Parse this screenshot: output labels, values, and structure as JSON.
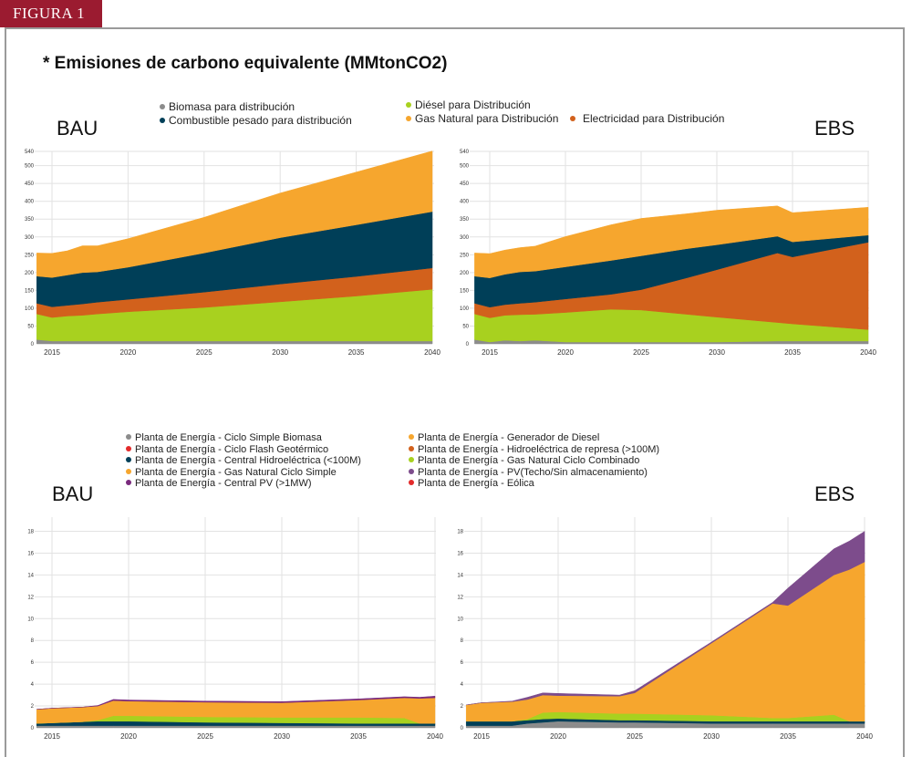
{
  "figure_tag": "FIGURA 1",
  "title": "* Emisiones de carbono equivalente (MMtonCO2)",
  "top_section": {
    "label_left": "BAU",
    "label_right": "EBS",
    "legend": [
      {
        "name": "Biomasa para distribución",
        "color": "#8c8c8c"
      },
      {
        "name": "Combustible pesado para distribución",
        "color": "#003f58"
      },
      {
        "name": "Diésel para Distribución",
        "color": "#a8d11f"
      },
      {
        "name": "Gas Natural para Distribución",
        "color": "#f6a62e"
      },
      {
        "name": "Electricidad para Distribución",
        "color": "#d2611c"
      }
    ]
  },
  "bottom_section": {
    "label_left": "BAU",
    "label_right": "EBS",
    "legend": [
      {
        "name": "Planta de Energía - Ciclo Simple Biomasa",
        "color": "#8c8c8c"
      },
      {
        "name": "Planta de Energía - Ciclo Flash Geotérmico",
        "color": "#e32b2b"
      },
      {
        "name": "Planta de Energía - Central Hidroeléctrica (<100M)",
        "color": "#003f58"
      },
      {
        "name": "Planta de Energía - Gas Natural Ciclo Simple",
        "color": "#f6a62e"
      },
      {
        "name": "Planta de Energía - Central PV (>1MW)",
        "color": "#7a2a7d"
      },
      {
        "name": "Planta de Energía - Generador de Diesel",
        "color": "#f6a62e"
      },
      {
        "name": "Planta de Energía - Hidroeléctrica de represa (>100M)",
        "color": "#d2611c"
      },
      {
        "name": "Planta de Energía - Gas Natural Ciclo Combinado",
        "color": "#a8d11f"
      },
      {
        "name": "Planta de Energía - PV(Techo/Sin almacenamiento)",
        "color": "#7d4c8c"
      },
      {
        "name": "Planta de Energía - Eólica",
        "color": "#e32b2b"
      }
    ]
  },
  "chart_data": [
    {
      "id": "top-bau",
      "type": "area",
      "stacked": true,
      "title": "BAU",
      "x": [
        2014,
        2015,
        2016,
        2017,
        2018,
        2020,
        2025,
        2030,
        2035,
        2040
      ],
      "xticks": [
        2015,
        2020,
        2025,
        2030,
        2035,
        2040
      ],
      "yticks": [
        0,
        50,
        100,
        150,
        200,
        250,
        300,
        350,
        400,
        450,
        500,
        540
      ],
      "ylim": [
        0,
        540
      ],
      "grid": true,
      "series": [
        {
          "name": "Biomasa para distribución",
          "color": "#8c8c8c",
          "values": [
            12,
            8,
            8,
            8,
            8,
            8,
            8,
            8,
            8,
            8
          ]
        },
        {
          "name": "Diésel para Distribución",
          "color": "#a8d11f",
          "values": [
            72,
            66,
            70,
            72,
            76,
            82,
            94,
            110,
            126,
            145
          ]
        },
        {
          "name": "Electricidad para Distribución",
          "color": "#d2611c",
          "values": [
            30,
            30,
            30,
            32,
            33,
            35,
            43,
            50,
            55,
            60
          ]
        },
        {
          "name": "Combustible pesado para distribución",
          "color": "#003f58",
          "values": [
            76,
            82,
            85,
            88,
            85,
            90,
            110,
            130,
            145,
            158
          ]
        },
        {
          "name": "Gas Natural para Distribución",
          "color": "#f6a62e",
          "values": [
            65,
            68,
            68,
            75,
            73,
            80,
            100,
            125,
            148,
            170
          ]
        }
      ]
    },
    {
      "id": "top-ebs",
      "type": "area",
      "stacked": true,
      "title": "EBS",
      "x": [
        2014,
        2015,
        2016,
        2017,
        2018,
        2020,
        2023,
        2025,
        2028,
        2030,
        2034,
        2035,
        2040
      ],
      "xticks": [
        2015,
        2020,
        2025,
        2030,
        2035,
        2040
      ],
      "yticks": [
        0,
        50,
        100,
        150,
        200,
        250,
        300,
        350,
        400,
        450,
        500,
        540
      ],
      "ylim": [
        0,
        540
      ],
      "grid": true,
      "series": [
        {
          "name": "Biomasa para distribución",
          "color": "#8c8c8c",
          "values": [
            12,
            5,
            10,
            8,
            10,
            5,
            5,
            5,
            5,
            5,
            8,
            8,
            8
          ]
        },
        {
          "name": "Diésel para Distribución",
          "color": "#a8d11f",
          "values": [
            72,
            68,
            70,
            74,
            73,
            83,
            92,
            90,
            78,
            70,
            52,
            48,
            32
          ]
        },
        {
          "name": "Electricidad para Distribución",
          "color": "#d2611c",
          "values": [
            30,
            30,
            30,
            32,
            34,
            38,
            42,
            57,
            102,
            133,
            195,
            188,
            245
          ]
        },
        {
          "name": "Combustible pesado para distribución",
          "color": "#003f58",
          "values": [
            76,
            82,
            85,
            88,
            87,
            90,
            95,
            95,
            82,
            70,
            47,
            42,
            20
          ]
        },
        {
          "name": "Gas Natural para Distribución",
          "color": "#f6a62e",
          "values": [
            65,
            68,
            68,
            68,
            70,
            85,
            100,
            105,
            98,
            97,
            85,
            82,
            78
          ]
        }
      ]
    },
    {
      "id": "bottom-bau",
      "type": "area",
      "stacked": true,
      "title": "BAU",
      "x": [
        2014,
        2015,
        2017,
        2018,
        2019,
        2020,
        2025,
        2030,
        2035,
        2038,
        2039,
        2040
      ],
      "xticks": [
        2015,
        2020,
        2025,
        2030,
        2035,
        2040
      ],
      "yticks": [
        0,
        2,
        4,
        6,
        8,
        10,
        12,
        14,
        16,
        18
      ],
      "ylim": [
        0,
        19.3
      ],
      "grid": true,
      "series": [
        {
          "name": "Planta de Energía - Ciclo Simple Biomasa",
          "color": "#8c8c8c",
          "values": [
            0.2,
            0.2,
            0.2,
            0.2,
            0.2,
            0.2,
            0.2,
            0.2,
            0.2,
            0.2,
            0.2,
            0.2
          ]
        },
        {
          "name": "Planta de Energía - Central Hidroeléctrica (<100M)",
          "color": "#003f58",
          "values": [
            0.2,
            0.25,
            0.35,
            0.4,
            0.4,
            0.4,
            0.3,
            0.25,
            0.2,
            0.2,
            0.2,
            0.2
          ]
        },
        {
          "name": "Planta de Energía - Gas Natural Ciclo Combinado",
          "color": "#a8d11f",
          "values": [
            0,
            0,
            0,
            0.1,
            0.5,
            0.5,
            0.5,
            0.5,
            0.55,
            0.5,
            0,
            0
          ]
        },
        {
          "name": "Planta de Energía - Gas Natural Ciclo Simple",
          "color": "#f6a62e",
          "values": [
            1.3,
            1.35,
            1.35,
            1.3,
            1.4,
            1.35,
            1.35,
            1.35,
            1.6,
            1.85,
            2.3,
            2.35
          ]
        },
        {
          "name": "Planta de Energía - Central PV (>1MW)",
          "color": "#7a2a7d",
          "values": [
            0,
            0,
            0,
            0.05,
            0.1,
            0.1,
            0.1,
            0.1,
            0.1,
            0.1,
            0.1,
            0.15
          ]
        }
      ]
    },
    {
      "id": "bottom-ebs",
      "type": "area",
      "stacked": true,
      "title": "EBS",
      "x": [
        2014,
        2015,
        2017,
        2018,
        2019,
        2020,
        2024,
        2025,
        2030,
        2034,
        2035,
        2038,
        2039,
        2040
      ],
      "xticks": [
        2015,
        2020,
        2025,
        2030,
        2035,
        2040
      ],
      "yticks": [
        0,
        2,
        4,
        6,
        8,
        10,
        12,
        14,
        16,
        18
      ],
      "ylim": [
        0,
        19.3
      ],
      "grid": true,
      "series": [
        {
          "name": "Planta de Energía - Ciclo Simple Biomasa",
          "color": "#8c8c8c",
          "values": [
            0.2,
            0.2,
            0.2,
            0.4,
            0.5,
            0.6,
            0.5,
            0.5,
            0.4,
            0.4,
            0.4,
            0.4,
            0.4,
            0.4
          ]
        },
        {
          "name": "Planta de Energía - Central Hidroeléctrica (<100M)",
          "color": "#003f58",
          "values": [
            0.4,
            0.4,
            0.4,
            0.3,
            0.3,
            0.25,
            0.2,
            0.2,
            0.2,
            0.2,
            0.2,
            0.2,
            0.2,
            0.2
          ]
        },
        {
          "name": "Planta de Energía - Gas Natural Ciclo Combinado",
          "color": "#a8d11f",
          "values": [
            0,
            0,
            0,
            0.1,
            0.6,
            0.6,
            0.6,
            0.6,
            0.55,
            0.3,
            0.3,
            0.6,
            0,
            0
          ]
        },
        {
          "name": "Planta de Energía - Generador de Diesel",
          "color": "#f6a62e",
          "values": [
            1.5,
            1.7,
            1.8,
            1.8,
            1.6,
            1.5,
            1.6,
            1.9,
            6.6,
            10.5,
            10.3,
            12.8,
            13.9,
            14.6
          ]
        },
        {
          "name": "Planta de Energía - PV(Techo/Sin almacenamiento)",
          "color": "#7d4c8c",
          "values": [
            0,
            0,
            0.05,
            0.2,
            0.2,
            0.2,
            0.1,
            0.2,
            0.1,
            0.1,
            1.6,
            2.4,
            2.6,
            2.8
          ]
        }
      ]
    }
  ]
}
